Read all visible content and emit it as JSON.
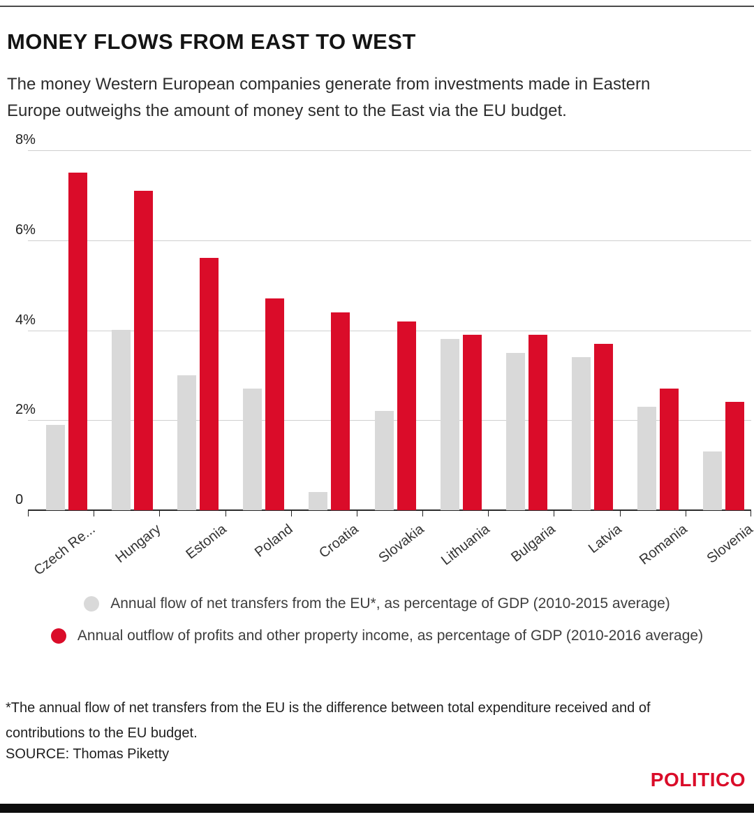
{
  "page": {
    "title": "MONEY FLOWS FROM EAST TO WEST",
    "subtitle": "The money Western European companies generate from investments made in Eastern Europe outweighs the amount of money sent to the East via the EU budget.",
    "footnote": "*The annual flow of net transfers from the EU is the difference between total expenditure received and of contributions to the EU budget.",
    "source": "SOURCE: Thomas Piketty",
    "brand": "POLITICO"
  },
  "colors": {
    "gray": "#d9d9d9",
    "red": "#da0c29",
    "grid": "#cfcfcf",
    "axis": "#2a2a2a",
    "brand_red": "#da0c29"
  },
  "chart_data": {
    "type": "bar",
    "categories": [
      "Czech Re...",
      "Hungary",
      "Estonia",
      "Poland",
      "Croatia",
      "Slovakia",
      "Lithuania",
      "Bulgaria",
      "Latvia",
      "Romania",
      "Slovenia"
    ],
    "series": [
      {
        "name": "Annual flow of net transfers from the EU*, as percentage of GDP (2010-2015 average)",
        "color_key": "gray",
        "values": [
          1.9,
          4.0,
          3.0,
          2.7,
          0.4,
          2.2,
          3.8,
          3.5,
          3.4,
          2.3,
          1.3
        ]
      },
      {
        "name": "Annual outflow of profits and other property income, as percentage of GDP (2010-2016 average)",
        "color_key": "red",
        "values": [
          7.5,
          7.1,
          5.6,
          4.7,
          4.4,
          4.2,
          3.9,
          3.9,
          3.7,
          2.7,
          2.4
        ]
      }
    ],
    "title": "MONEY FLOWS FROM EAST TO WEST",
    "xlabel": "",
    "ylabel": "",
    "ylim": [
      0,
      8
    ],
    "yticks": [
      0,
      2,
      4,
      6,
      8
    ],
    "ytick_labels": [
      "0",
      "2%",
      "4%",
      "6%",
      "8%"
    ],
    "grid": true,
    "legend_position": "bottom"
  }
}
